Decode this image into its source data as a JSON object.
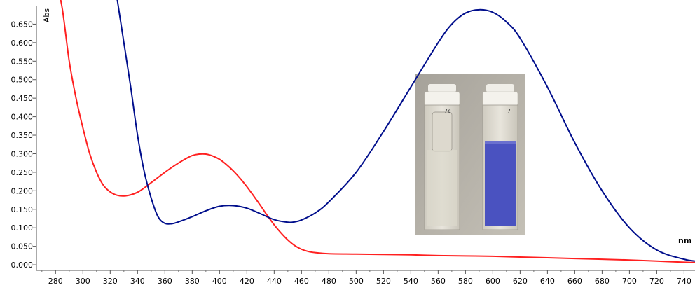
{
  "chart_data": {
    "type": "line",
    "title": "",
    "xlabel": "nm",
    "ylabel": "Abs",
    "xlim": [
      266,
      748
    ],
    "ylim": [
      -0.015,
      0.7
    ],
    "grid": false,
    "legend": "none",
    "x_ticks": [
      280,
      300,
      320,
      340,
      360,
      380,
      400,
      420,
      440,
      460,
      480,
      500,
      520,
      540,
      560,
      580,
      600,
      620,
      640,
      660,
      680,
      700,
      720,
      740
    ],
    "y_ticks": [
      "0.000",
      "0.050",
      "0.100",
      "0.150",
      "0.200",
      "0.250",
      "0.300",
      "0.350",
      "0.400",
      "0.450",
      "0.500",
      "0.550",
      "0.600",
      "0.650"
    ],
    "series": [
      {
        "color": "#ff2020",
        "x": [
          280,
          285,
          290,
          295,
          300,
          305,
          310,
          315,
          320,
          325,
          330,
          335,
          340,
          345,
          350,
          355,
          360,
          365,
          370,
          375,
          380,
          385,
          390,
          395,
          400,
          405,
          410,
          415,
          420,
          425,
          430,
          435,
          440,
          445,
          450,
          455,
          460,
          465,
          470,
          480,
          500,
          520,
          540,
          560,
          580,
          600,
          620,
          640,
          660,
          680,
          700,
          720,
          740,
          748
        ],
        "y": [
          0.78,
          0.69,
          0.55,
          0.45,
          0.37,
          0.3,
          0.25,
          0.215,
          0.197,
          0.188,
          0.186,
          0.189,
          0.196,
          0.208,
          0.222,
          0.236,
          0.25,
          0.263,
          0.275,
          0.286,
          0.295,
          0.299,
          0.299,
          0.294,
          0.285,
          0.271,
          0.254,
          0.234,
          0.211,
          0.186,
          0.16,
          0.133,
          0.108,
          0.086,
          0.067,
          0.052,
          0.042,
          0.036,
          0.033,
          0.03,
          0.029,
          0.028,
          0.027,
          0.025,
          0.024,
          0.023,
          0.021,
          0.019,
          0.017,
          0.015,
          0.013,
          0.01,
          0.007,
          0.006
        ]
      },
      {
        "color": "#000e8c",
        "x": [
          325,
          330,
          335,
          340,
          345,
          350,
          355,
          360,
          365,
          370,
          380,
          390,
          400,
          410,
          420,
          430,
          440,
          450,
          455,
          460,
          470,
          480,
          500,
          520,
          540,
          560,
          570,
          580,
          590,
          600,
          610,
          620,
          640,
          660,
          680,
          700,
          720,
          740,
          748
        ],
        "y": [
          0.72,
          0.6,
          0.48,
          0.35,
          0.25,
          0.18,
          0.13,
          0.112,
          0.111,
          0.116,
          0.13,
          0.146,
          0.158,
          0.16,
          0.153,
          0.138,
          0.122,
          0.115,
          0.116,
          0.121,
          0.14,
          0.17,
          0.25,
          0.36,
          0.48,
          0.6,
          0.65,
          0.68,
          0.689,
          0.682,
          0.656,
          0.612,
          0.48,
          0.33,
          0.2,
          0.1,
          0.04,
          0.015,
          0.01
        ]
      }
    ]
  },
  "inset_photo": {
    "cuvette_labels": [
      "7c",
      "7"
    ],
    "solution_color": "#4a52c0"
  }
}
